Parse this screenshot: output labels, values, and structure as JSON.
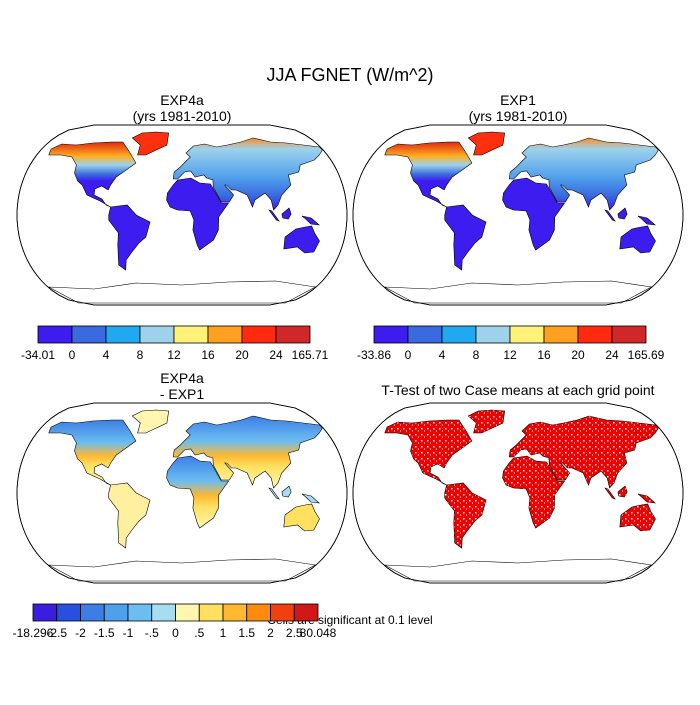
{
  "title": "JJA FGNET (W/m^2)",
  "panels": [
    {
      "title": [
        "EXP4a",
        "(yrs 1981-2010)"
      ],
      "colorbar": {
        "colors": [
          "#3d1cf0",
          "#3a6ae0",
          "#20a8f0",
          "#9ed2ec",
          "#fff27a",
          "#ffa020",
          "#ff2a10",
          "#d02828"
        ],
        "labels": [
          "-34.01",
          "0",
          "4",
          "8",
          "12",
          "16",
          "20",
          "24",
          "165.71"
        ]
      }
    },
    {
      "title": [
        "EXP1",
        "(yrs 1981-2010)"
      ],
      "colorbar": {
        "colors": [
          "#3d1cf0",
          "#3a6ae0",
          "#20a8f0",
          "#9ed2ec",
          "#fff27a",
          "#ffa020",
          "#ff2a10",
          "#d02828"
        ],
        "labels": [
          "-33.86",
          "0",
          "4",
          "8",
          "12",
          "16",
          "20",
          "24",
          "165.69"
        ]
      }
    },
    {
      "title": [
        "EXP4a",
        "- EXP1"
      ],
      "colorbar": {
        "colors": [
          "#3a1ee0",
          "#2850e0",
          "#3c7ee6",
          "#4fa0ec",
          "#6cbdf0",
          "#a8dcf0",
          "#fff6b0",
          "#ffe060",
          "#ffb830",
          "#ff8a10",
          "#f04010",
          "#d01818"
        ],
        "labels": [
          "-18.296",
          "-2.5",
          "-2",
          "-1.5",
          "-1",
          "-.5",
          "0",
          ".5",
          "1",
          "1.5",
          "2",
          "2.5",
          "80.048"
        ]
      }
    },
    {
      "title": [
        "T-Test of two Case means at each grid point"
      ]
    }
  ],
  "note": "Cells are significant at 0.1 level"
}
